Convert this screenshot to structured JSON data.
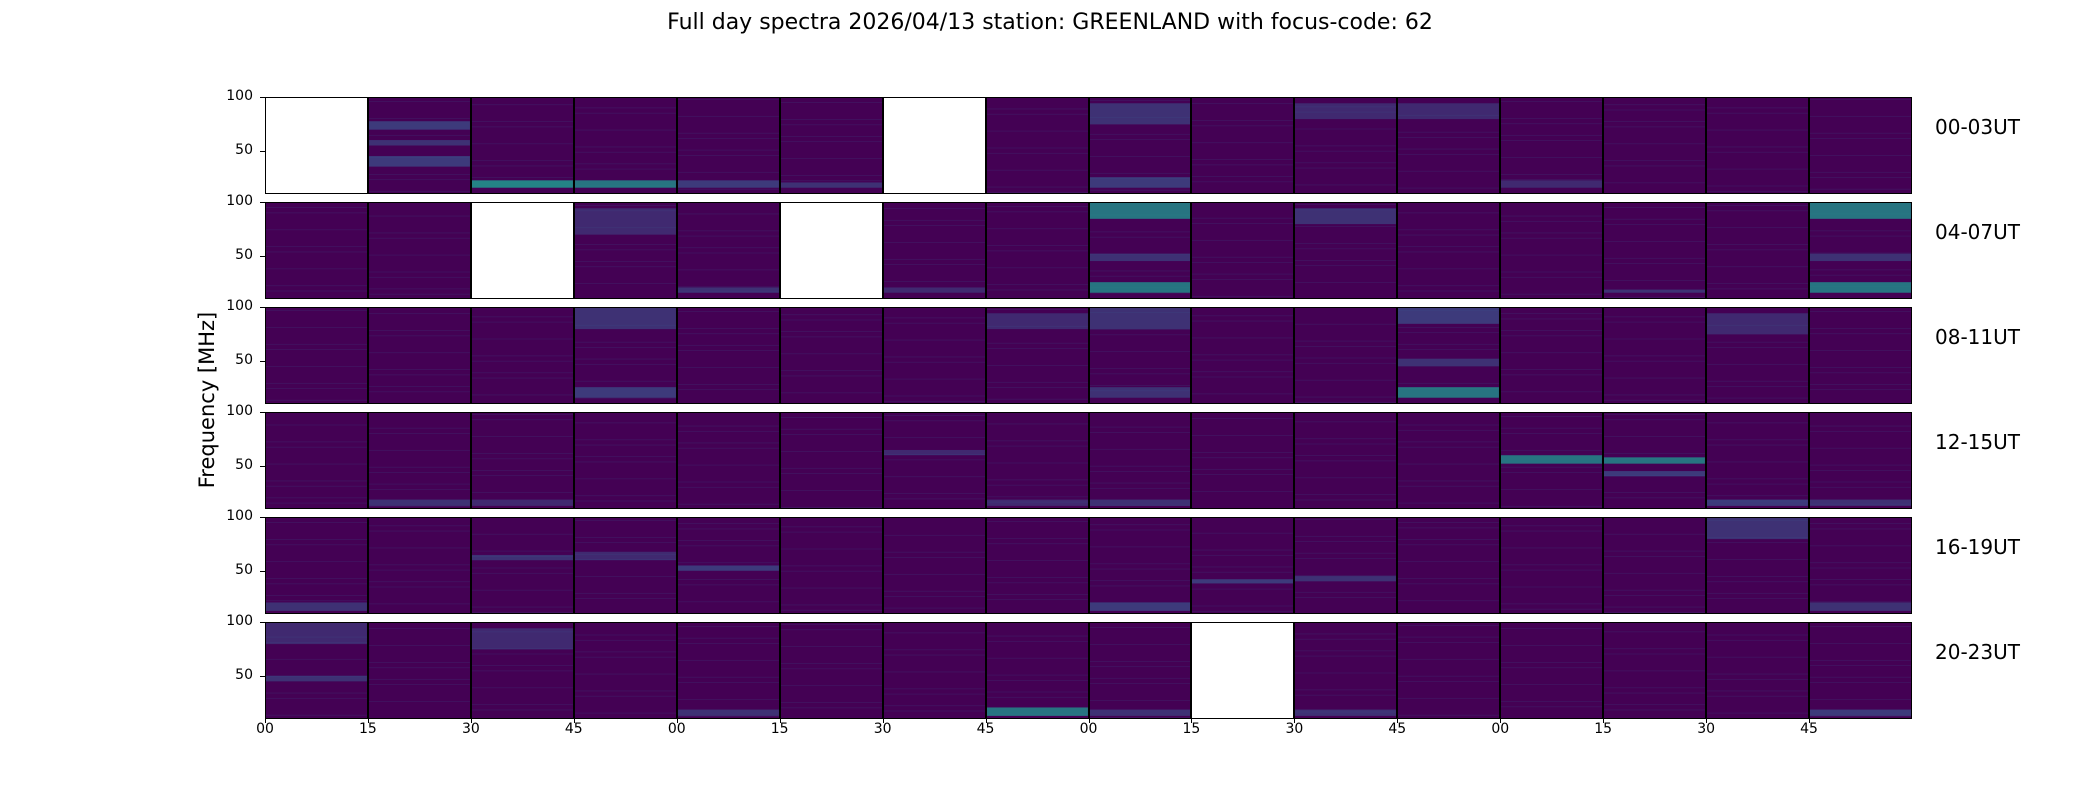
{
  "title": "Full day spectra 2026/04/13 station: GREENLAND with focus-code: 62",
  "colors": {
    "background": "#440154",
    "band_low": "#3b528b",
    "band_mid": "#21918c",
    "band_high": "#5ec962",
    "empty": "#ffffff"
  },
  "chart_data": {
    "type": "heatmap",
    "title": "Full day spectra 2026/04/13 station: GREENLAND with focus-code: 62",
    "ylabel": "Frequency [MHz]",
    "ylim": [
      10,
      100
    ],
    "yticks": [
      "100",
      "50"
    ],
    "xticks": [
      "00",
      "15",
      "30",
      "45",
      "00",
      "15",
      "30",
      "45",
      "00",
      "15",
      "30",
      "45",
      "00",
      "15",
      "30",
      "45"
    ],
    "panels_per_row": 16,
    "panel_minutes": 15,
    "rows": [
      {
        "label": "00-03UT",
        "empty_panels": [
          0,
          6
        ],
        "features": [
          {
            "panel": 1,
            "fmin": 70,
            "fmax": 78,
            "level": 0.5
          },
          {
            "panel": 1,
            "fmin": 55,
            "fmax": 60,
            "level": 0.4
          },
          {
            "panel": 1,
            "fmin": 35,
            "fmax": 45,
            "level": 0.5
          },
          {
            "panel": 2,
            "fmin": 15,
            "fmax": 22,
            "level": 0.7
          },
          {
            "panel": 3,
            "fmin": 15,
            "fmax": 22,
            "level": 0.6
          },
          {
            "panel": 4,
            "fmin": 15,
            "fmax": 22,
            "level": 0.5
          },
          {
            "panel": 5,
            "fmin": 15,
            "fmax": 20,
            "level": 0.4
          },
          {
            "panel": 8,
            "fmin": 15,
            "fmax": 25,
            "level": 0.5
          },
          {
            "panel": 8,
            "fmin": 75,
            "fmax": 95,
            "level": 0.4
          },
          {
            "panel": 10,
            "fmin": 80,
            "fmax": 95,
            "level": 0.3
          },
          {
            "panel": 11,
            "fmin": 80,
            "fmax": 95,
            "level": 0.3
          },
          {
            "panel": 12,
            "fmin": 15,
            "fmax": 22,
            "level": 0.3
          }
        ]
      },
      {
        "label": "04-07UT",
        "empty_panels": [
          2,
          5
        ],
        "features": [
          {
            "panel": 3,
            "fmin": 70,
            "fmax": 95,
            "level": 0.3
          },
          {
            "panel": 4,
            "fmin": 15,
            "fmax": 20,
            "level": 0.4
          },
          {
            "panel": 6,
            "fmin": 15,
            "fmax": 20,
            "level": 0.3
          },
          {
            "panel": 8,
            "fmin": 85,
            "fmax": 100,
            "level": 0.6
          },
          {
            "panel": 8,
            "fmin": 45,
            "fmax": 52,
            "level": 0.4
          },
          {
            "panel": 8,
            "fmin": 15,
            "fmax": 25,
            "level": 0.6
          },
          {
            "panel": 10,
            "fmin": 80,
            "fmax": 95,
            "level": 0.4
          },
          {
            "panel": 13,
            "fmin": 15,
            "fmax": 18,
            "level": 0.4
          },
          {
            "panel": 15,
            "fmin": 85,
            "fmax": 100,
            "level": 0.6
          },
          {
            "panel": 15,
            "fmin": 45,
            "fmax": 52,
            "level": 0.4
          },
          {
            "panel": 15,
            "fmin": 15,
            "fmax": 25,
            "level": 0.6
          }
        ]
      },
      {
        "label": "08-11UT",
        "empty_panels": [],
        "features": [
          {
            "panel": 3,
            "fmin": 80,
            "fmax": 100,
            "level": 0.4
          },
          {
            "panel": 3,
            "fmin": 15,
            "fmax": 25,
            "level": 0.5
          },
          {
            "panel": 7,
            "fmin": 80,
            "fmax": 95,
            "level": 0.3
          },
          {
            "panel": 8,
            "fmin": 80,
            "fmax": 100,
            "level": 0.4
          },
          {
            "panel": 8,
            "fmin": 15,
            "fmax": 25,
            "level": 0.4
          },
          {
            "panel": 11,
            "fmin": 85,
            "fmax": 100,
            "level": 0.5
          },
          {
            "panel": 11,
            "fmin": 45,
            "fmax": 52,
            "level": 0.4
          },
          {
            "panel": 11,
            "fmin": 15,
            "fmax": 25,
            "level": 0.6
          },
          {
            "panel": 14,
            "fmin": 75,
            "fmax": 95,
            "level": 0.3
          }
        ]
      },
      {
        "label": "12-15UT",
        "empty_panels": [],
        "features": [
          {
            "panel": 1,
            "fmin": 12,
            "fmax": 18,
            "level": 0.4
          },
          {
            "panel": 2,
            "fmin": 12,
            "fmax": 18,
            "level": 0.3
          },
          {
            "panel": 6,
            "fmin": 60,
            "fmax": 65,
            "level": 0.3
          },
          {
            "panel": 7,
            "fmin": 12,
            "fmax": 18,
            "level": 0.3
          },
          {
            "panel": 8,
            "fmin": 12,
            "fmax": 18,
            "level": 0.4
          },
          {
            "panel": 12,
            "fmin": 52,
            "fmax": 60,
            "level": 0.6
          },
          {
            "panel": 13,
            "fmin": 52,
            "fmax": 58,
            "level": 0.6
          },
          {
            "panel": 13,
            "fmin": 40,
            "fmax": 45,
            "level": 0.5
          },
          {
            "panel": 14,
            "fmin": 12,
            "fmax": 18,
            "level": 0.5
          },
          {
            "panel": 15,
            "fmin": 12,
            "fmax": 18,
            "level": 0.4
          }
        ]
      },
      {
        "label": "16-19UT",
        "empty_panels": [],
        "features": [
          {
            "panel": 0,
            "fmin": 12,
            "fmax": 20,
            "level": 0.4
          },
          {
            "panel": 2,
            "fmin": 60,
            "fmax": 65,
            "level": 0.4
          },
          {
            "panel": 3,
            "fmin": 60,
            "fmax": 68,
            "level": 0.3
          },
          {
            "panel": 4,
            "fmin": 50,
            "fmax": 55,
            "level": 0.5
          },
          {
            "panel": 8,
            "fmin": 12,
            "fmax": 20,
            "level": 0.5
          },
          {
            "panel": 9,
            "fmin": 38,
            "fmax": 42,
            "level": 0.5
          },
          {
            "panel": 10,
            "fmin": 40,
            "fmax": 45,
            "level": 0.4
          },
          {
            "panel": 14,
            "fmin": 80,
            "fmax": 100,
            "level": 0.4
          },
          {
            "panel": 15,
            "fmin": 12,
            "fmax": 20,
            "level": 0.4
          }
        ]
      },
      {
        "label": "20-23UT",
        "empty_panels": [
          9
        ],
        "features": [
          {
            "panel": 0,
            "fmin": 45,
            "fmax": 50,
            "level": 0.4
          },
          {
            "panel": 0,
            "fmin": 80,
            "fmax": 100,
            "level": 0.3
          },
          {
            "panel": 2,
            "fmin": 75,
            "fmax": 95,
            "level": 0.3
          },
          {
            "panel": 4,
            "fmin": 12,
            "fmax": 18,
            "level": 0.4
          },
          {
            "panel": 7,
            "fmin": 12,
            "fmax": 20,
            "level": 0.6
          },
          {
            "panel": 8,
            "fmin": 12,
            "fmax": 18,
            "level": 0.4
          },
          {
            "panel": 10,
            "fmin": 12,
            "fmax": 18,
            "level": 0.4
          },
          {
            "panel": 15,
            "fmin": 12,
            "fmax": 18,
            "level": 0.5
          }
        ]
      }
    ]
  }
}
